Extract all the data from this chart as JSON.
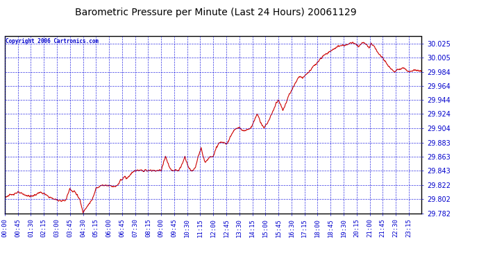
{
  "title": "Barometric Pressure per Minute (Last 24 Hours) 20061129",
  "copyright": "Copyright 2006 Cartronics.com",
  "background_color": "#ffffff",
  "plot_bg_color": "#ffffff",
  "line_color": "#cc0000",
  "grid_color": "#0000dd",
  "tick_label_color": "#0000cc",
  "title_color": "#000000",
  "border_color": "#000000",
  "ylim": [
    29.782,
    30.035
  ],
  "yticks": [
    29.782,
    29.802,
    29.822,
    29.843,
    29.863,
    29.883,
    29.904,
    29.924,
    29.944,
    29.964,
    29.984,
    30.005,
    30.025
  ],
  "xtick_labels": [
    "00:00",
    "00:45",
    "01:30",
    "02:15",
    "03:00",
    "03:45",
    "04:30",
    "05:15",
    "06:00",
    "06:45",
    "07:30",
    "08:15",
    "09:00",
    "09:45",
    "10:30",
    "11:15",
    "12:00",
    "12:45",
    "13:30",
    "14:15",
    "15:00",
    "15:45",
    "16:30",
    "17:15",
    "18:00",
    "18:45",
    "19:30",
    "20:15",
    "21:00",
    "21:45",
    "22:30",
    "23:15"
  ],
  "key_points": [
    [
      0,
      29.805
    ],
    [
      20,
      29.808
    ],
    [
      45,
      29.812
    ],
    [
      70,
      29.808
    ],
    [
      90,
      29.806
    ],
    [
      105,
      29.808
    ],
    [
      120,
      29.812
    ],
    [
      135,
      29.81
    ],
    [
      150,
      29.806
    ],
    [
      165,
      29.803
    ],
    [
      180,
      29.801
    ],
    [
      195,
      29.8
    ],
    [
      210,
      29.8
    ],
    [
      220,
      29.812
    ],
    [
      225,
      29.818
    ],
    [
      235,
      29.812
    ],
    [
      240,
      29.814
    ],
    [
      250,
      29.808
    ],
    [
      260,
      29.8
    ],
    [
      270,
      29.783
    ],
    [
      280,
      29.79
    ],
    [
      290,
      29.795
    ],
    [
      300,
      29.8
    ],
    [
      310,
      29.81
    ],
    [
      315,
      29.818
    ],
    [
      325,
      29.82
    ],
    [
      335,
      29.822
    ],
    [
      345,
      29.822
    ],
    [
      360,
      29.822
    ],
    [
      375,
      29.82
    ],
    [
      390,
      29.822
    ],
    [
      400,
      29.83
    ],
    [
      405,
      29.83
    ],
    [
      415,
      29.835
    ],
    [
      420,
      29.832
    ],
    [
      430,
      29.835
    ],
    [
      440,
      29.84
    ],
    [
      450,
      29.843
    ],
    [
      460,
      29.843
    ],
    [
      470,
      29.843
    ],
    [
      480,
      29.843
    ],
    [
      490,
      29.843
    ],
    [
      500,
      29.843
    ],
    [
      510,
      29.843
    ],
    [
      520,
      29.843
    ],
    [
      530,
      29.843
    ],
    [
      540,
      29.843
    ],
    [
      548,
      29.855
    ],
    [
      555,
      29.863
    ],
    [
      562,
      29.855
    ],
    [
      568,
      29.848
    ],
    [
      575,
      29.843
    ],
    [
      582,
      29.843
    ],
    [
      590,
      29.843
    ],
    [
      600,
      29.843
    ],
    [
      608,
      29.848
    ],
    [
      615,
      29.855
    ],
    [
      622,
      29.863
    ],
    [
      628,
      29.855
    ],
    [
      635,
      29.848
    ],
    [
      642,
      29.843
    ],
    [
      650,
      29.843
    ],
    [
      658,
      29.848
    ],
    [
      665,
      29.858
    ],
    [
      672,
      29.868
    ],
    [
      678,
      29.875
    ],
    [
      685,
      29.863
    ],
    [
      692,
      29.855
    ],
    [
      700,
      29.858
    ],
    [
      710,
      29.863
    ],
    [
      720,
      29.863
    ],
    [
      730,
      29.875
    ],
    [
      740,
      29.883
    ],
    [
      750,
      29.883
    ],
    [
      760,
      29.883
    ],
    [
      770,
      29.883
    ],
    [
      780,
      29.893
    ],
    [
      790,
      29.9
    ],
    [
      800,
      29.904
    ],
    [
      810,
      29.904
    ],
    [
      820,
      29.901
    ],
    [
      830,
      29.9
    ],
    [
      840,
      29.902
    ],
    [
      850,
      29.904
    ],
    [
      858,
      29.912
    ],
    [
      865,
      29.918
    ],
    [
      872,
      29.924
    ],
    [
      880,
      29.916
    ],
    [
      888,
      29.908
    ],
    [
      895,
      29.904
    ],
    [
      905,
      29.91
    ],
    [
      915,
      29.918
    ],
    [
      922,
      29.924
    ],
    [
      930,
      29.932
    ],
    [
      937,
      29.94
    ],
    [
      944,
      29.944
    ],
    [
      952,
      29.938
    ],
    [
      960,
      29.93
    ],
    [
      968,
      29.936
    ],
    [
      975,
      29.944
    ],
    [
      982,
      29.952
    ],
    [
      990,
      29.958
    ],
    [
      998,
      29.964
    ],
    [
      1005,
      29.97
    ],
    [
      1012,
      29.975
    ],
    [
      1020,
      29.978
    ],
    [
      1028,
      29.975
    ],
    [
      1035,
      29.978
    ],
    [
      1042,
      29.982
    ],
    [
      1050,
      29.984
    ],
    [
      1058,
      29.988
    ],
    [
      1065,
      29.992
    ],
    [
      1072,
      29.994
    ],
    [
      1080,
      29.998
    ],
    [
      1088,
      30.002
    ],
    [
      1095,
      30.005
    ],
    [
      1103,
      30.008
    ],
    [
      1110,
      30.01
    ],
    [
      1118,
      30.012
    ],
    [
      1125,
      30.014
    ],
    [
      1133,
      30.016
    ],
    [
      1140,
      30.018
    ],
    [
      1148,
      30.02
    ],
    [
      1155,
      30.021
    ],
    [
      1163,
      30.022
    ],
    [
      1170,
      30.022
    ],
    [
      1178,
      30.023
    ],
    [
      1185,
      30.024
    ],
    [
      1193,
      30.025
    ],
    [
      1200,
      30.026
    ],
    [
      1208,
      30.025
    ],
    [
      1215,
      30.023
    ],
    [
      1222,
      30.02
    ],
    [
      1230,
      30.025
    ],
    [
      1238,
      30.026
    ],
    [
      1245,
      30.025
    ],
    [
      1252,
      30.022
    ],
    [
      1258,
      30.018
    ],
    [
      1265,
      30.025
    ],
    [
      1272,
      30.022
    ],
    [
      1280,
      30.018
    ],
    [
      1288,
      30.012
    ],
    [
      1295,
      30.008
    ],
    [
      1305,
      30.005
    ],
    [
      1315,
      29.998
    ],
    [
      1325,
      29.992
    ],
    [
      1335,
      29.988
    ],
    [
      1345,
      29.984
    ],
    [
      1355,
      29.988
    ],
    [
      1365,
      29.988
    ],
    [
      1375,
      29.99
    ],
    [
      1385,
      29.988
    ],
    [
      1395,
      29.984
    ],
    [
      1405,
      29.985
    ],
    [
      1415,
      29.987
    ],
    [
      1425,
      29.986
    ],
    [
      1435,
      29.985
    ],
    [
      1439,
      29.985
    ]
  ]
}
